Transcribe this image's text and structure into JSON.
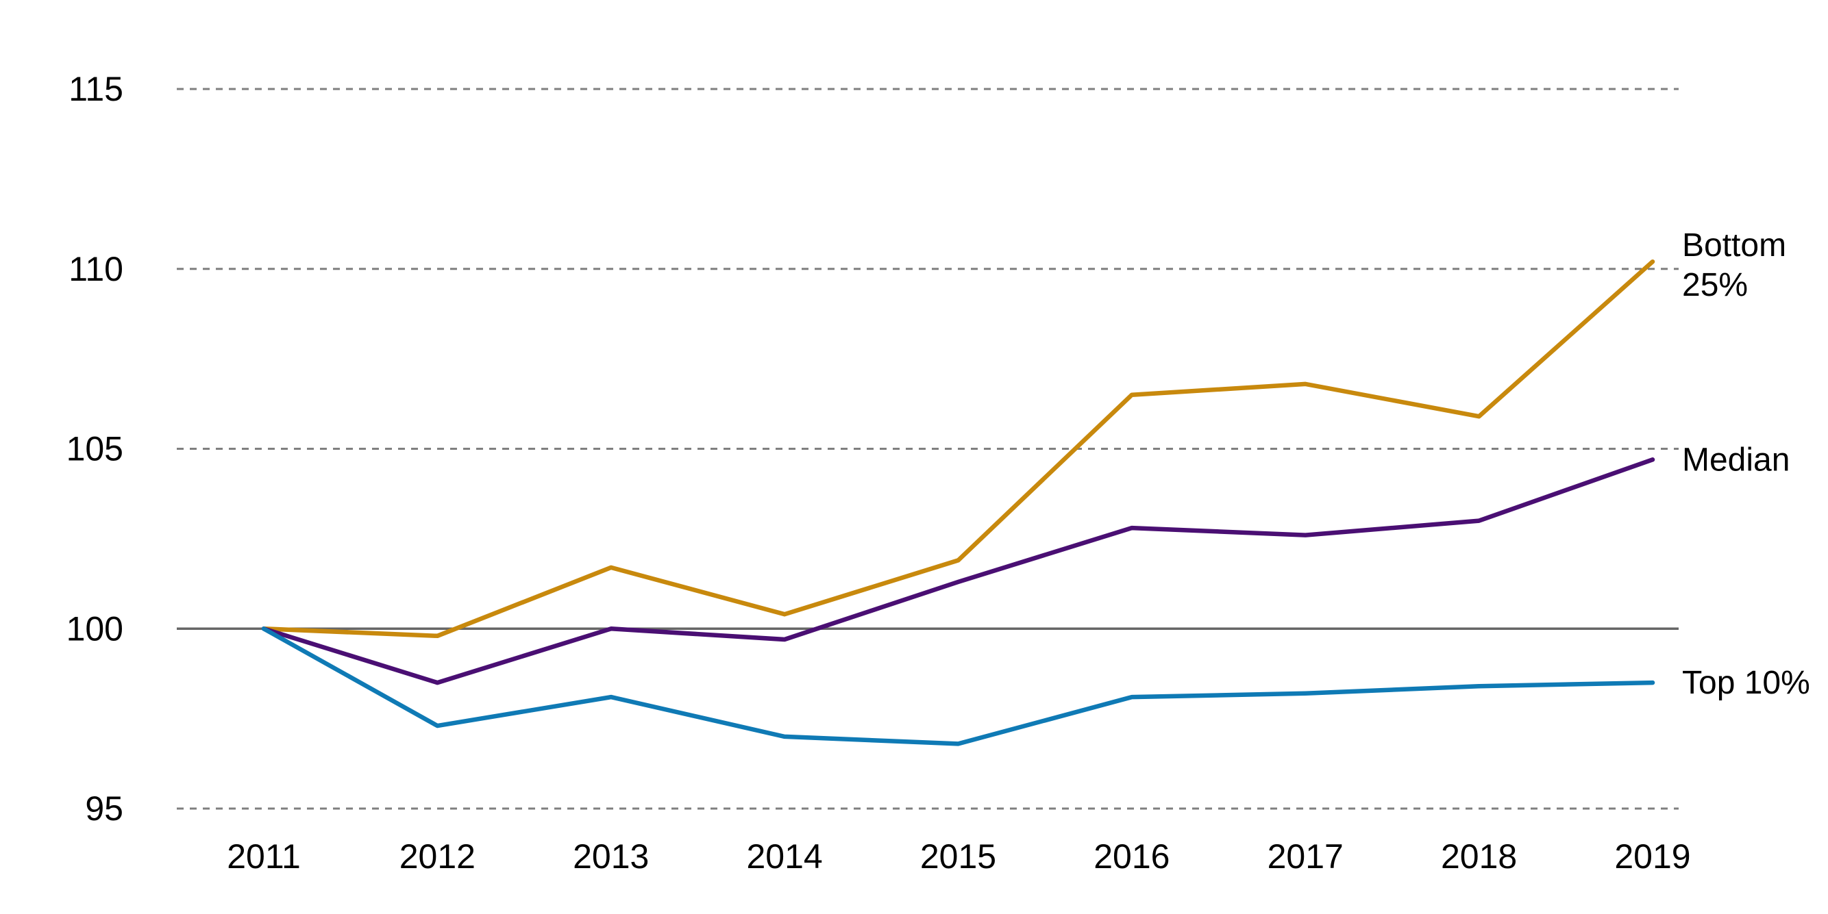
{
  "chart_data": {
    "type": "line",
    "title": "",
    "xlabel": "",
    "ylabel": "",
    "categories": [
      "2011",
      "2012",
      "2013",
      "2014",
      "2015",
      "2016",
      "2017",
      "2018",
      "2019"
    ],
    "ylim": [
      95,
      115
    ],
    "yticks": [
      95,
      100,
      105,
      110,
      115
    ],
    "ytick_labels": [
      "95",
      "100",
      "105",
      "110",
      "115"
    ],
    "grid": true,
    "grid_style": "dashed",
    "baseline": 100,
    "legend": "inline-right",
    "series": [
      {
        "name": "Bottom 25%",
        "label_lines": [
          "Bottom",
          "25%"
        ],
        "color": "#c8890d",
        "values": [
          100,
          99.8,
          101.7,
          100.4,
          101.9,
          106.5,
          106.8,
          105.9,
          110.2
        ]
      },
      {
        "name": "Median",
        "label_lines": [
          "Median"
        ],
        "color": "#4a0f73",
        "values": [
          100,
          98.5,
          100,
          99.7,
          101.3,
          102.8,
          102.6,
          103,
          104.7
        ]
      },
      {
        "name": "Top 10%",
        "label_lines": [
          "Top 10%"
        ],
        "color": "#0f7ab5",
        "values": [
          100,
          97.3,
          98.1,
          97,
          96.8,
          98.1,
          98.2,
          98.4,
          98.5
        ]
      }
    ]
  }
}
